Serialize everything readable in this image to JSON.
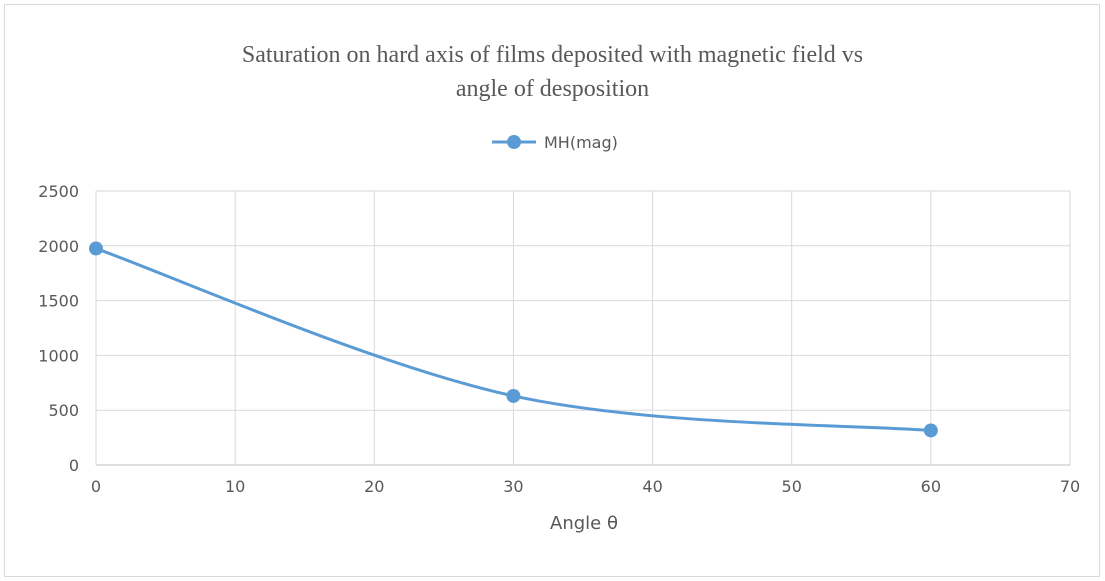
{
  "chart_data": {
    "type": "line",
    "title_line1": "Saturation on hard axis of films deposited with magnetic field vs",
    "title_line2": "angle of desposition",
    "xlabel": "Angle θ",
    "ylabel": "",
    "xlim": [
      0,
      70
    ],
    "ylim": [
      0,
      2500
    ],
    "x_ticks": [
      "0",
      "10",
      "20",
      "30",
      "40",
      "50",
      "60",
      "70"
    ],
    "y_ticks": [
      "0",
      "500",
      "1000",
      "1500",
      "2000",
      "2500"
    ],
    "grid": true,
    "legend_position": "top-center",
    "series": [
      {
        "name": "MH(mag)",
        "color": "#5b9bd5",
        "x": [
          0,
          30,
          60
        ],
        "y": [
          1975,
          630,
          315
        ]
      }
    ]
  }
}
